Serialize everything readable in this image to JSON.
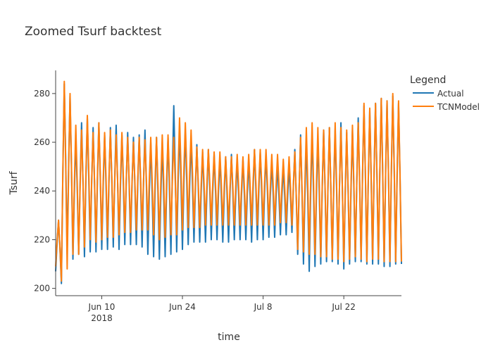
{
  "chart_data": {
    "type": "line",
    "title": "Zoomed Tsurf backtest",
    "xlabel": "time",
    "ylabel": "Tsurf",
    "legend_title": "Legend",
    "legend_position": "top-right",
    "grid": false,
    "ylim": [
      197,
      289.5
    ],
    "xlim": [
      "2018-06-02",
      "2018-08-01"
    ],
    "x_ticks": [
      {
        "date": "2018-06-10",
        "label": "Jun 10",
        "sublabel": "2018"
      },
      {
        "date": "2018-06-24",
        "label": "Jun 24"
      },
      {
        "date": "2018-07-08",
        "label": "Jul 8"
      },
      {
        "date": "2018-07-22",
        "label": "Jul 22"
      }
    ],
    "y_ticks": [
      200,
      220,
      240,
      260,
      280
    ],
    "series": [
      {
        "name": "Actual",
        "color": "#1f77b4",
        "x": [
          "2018-06-02",
          "2018-06-03",
          "2018-06-04",
          "2018-06-05",
          "2018-06-06",
          "2018-06-07",
          "2018-06-08",
          "2018-06-09",
          "2018-06-10",
          "2018-06-11",
          "2018-06-12",
          "2018-06-13",
          "2018-06-14",
          "2018-06-15",
          "2018-06-16",
          "2018-06-17",
          "2018-06-18",
          "2018-06-19",
          "2018-06-20",
          "2018-06-21",
          "2018-06-22",
          "2018-06-23",
          "2018-06-24",
          "2018-06-25",
          "2018-06-26",
          "2018-06-27",
          "2018-06-28",
          "2018-06-29",
          "2018-06-30",
          "2018-07-01",
          "2018-07-02",
          "2018-07-03",
          "2018-07-04",
          "2018-07-05",
          "2018-07-06",
          "2018-07-07",
          "2018-07-08",
          "2018-07-09",
          "2018-07-10",
          "2018-07-11",
          "2018-07-12",
          "2018-07-13",
          "2018-07-14",
          "2018-07-15",
          "2018-07-16",
          "2018-07-17",
          "2018-07-18",
          "2018-07-19",
          "2018-07-20",
          "2018-07-21",
          "2018-07-22",
          "2018-07-23",
          "2018-07-24",
          "2018-07-25",
          "2018-07-26",
          "2018-07-27",
          "2018-07-28",
          "2018-07-29",
          "2018-07-30",
          "2018-07-31"
        ],
        "max": [
          228,
          284,
          279,
          262,
          268,
          270,
          266,
          268,
          263,
          266,
          267,
          263,
          264,
          262,
          263,
          265,
          260,
          262,
          259,
          262,
          275,
          266,
          265,
          261,
          259,
          256,
          257,
          255,
          254,
          254,
          255,
          253,
          253,
          253,
          257,
          256,
          255,
          252,
          251,
          250,
          250,
          257,
          263,
          261,
          264,
          262,
          265,
          266,
          265,
          268,
          264,
          265,
          270,
          275,
          273,
          276,
          278,
          277,
          279,
          276
        ],
        "min": [
          207,
          202,
          214,
          212,
          214,
          213,
          215,
          215,
          216,
          216,
          217,
          216,
          218,
          218,
          218,
          217,
          214,
          213,
          212,
          213,
          214,
          215,
          216,
          218,
          219,
          219,
          219,
          220,
          220,
          219,
          219,
          220,
          220,
          220,
          219,
          220,
          220,
          221,
          221,
          222,
          222,
          223,
          214,
          210,
          207,
          209,
          210,
          211,
          211,
          210,
          208,
          210,
          211,
          211,
          210,
          210,
          210,
          209,
          209,
          210
        ]
      },
      {
        "name": "TCNModel",
        "color": "#ff7f0e",
        "x": [
          "2018-06-02",
          "2018-06-03",
          "2018-06-04",
          "2018-06-05",
          "2018-06-06",
          "2018-06-07",
          "2018-06-08",
          "2018-06-09",
          "2018-06-10",
          "2018-06-11",
          "2018-06-12",
          "2018-06-13",
          "2018-06-14",
          "2018-06-15",
          "2018-06-16",
          "2018-06-17",
          "2018-06-18",
          "2018-06-19",
          "2018-06-20",
          "2018-06-21",
          "2018-06-22",
          "2018-06-23",
          "2018-06-24",
          "2018-06-25",
          "2018-06-26",
          "2018-06-27",
          "2018-06-28",
          "2018-06-29",
          "2018-06-30",
          "2018-07-01",
          "2018-07-02",
          "2018-07-03",
          "2018-07-04",
          "2018-07-05",
          "2018-07-06",
          "2018-07-07",
          "2018-07-08",
          "2018-07-09",
          "2018-07-10",
          "2018-07-11",
          "2018-07-12",
          "2018-07-13",
          "2018-07-14",
          "2018-07-15",
          "2018-07-16",
          "2018-07-17",
          "2018-07-18",
          "2018-07-19",
          "2018-07-20",
          "2018-07-21",
          "2018-07-22",
          "2018-07-23",
          "2018-07-24",
          "2018-07-25",
          "2018-07-26",
          "2018-07-27",
          "2018-07-28",
          "2018-07-29",
          "2018-07-30",
          "2018-07-31"
        ],
        "max": [
          228,
          285,
          280,
          267,
          265,
          271,
          264,
          268,
          264,
          265,
          263,
          264,
          262,
          260,
          262,
          261,
          262,
          262,
          263,
          263,
          262,
          270,
          268,
          265,
          258,
          257,
          257,
          256,
          256,
          254,
          254,
          255,
          254,
          255,
          257,
          257,
          257,
          255,
          255,
          253,
          254,
          256,
          262,
          266,
          268,
          266,
          265,
          266,
          268,
          266,
          265,
          267,
          268,
          276,
          274,
          276,
          278,
          277,
          280,
          277
        ],
        "min": [
          209,
          203,
          208,
          214,
          214,
          217,
          220,
          219,
          220,
          221,
          221,
          222,
          223,
          223,
          224,
          224,
          224,
          222,
          220,
          221,
          222,
          222,
          224,
          225,
          225,
          225,
          226,
          226,
          226,
          226,
          226,
          226,
          226,
          226,
          226,
          226,
          226,
          226,
          226,
          227,
          227,
          226,
          216,
          215,
          214,
          214,
          213,
          213,
          212,
          212,
          211,
          212,
          213,
          212,
          211,
          212,
          212,
          211,
          211,
          211
        ]
      }
    ]
  }
}
